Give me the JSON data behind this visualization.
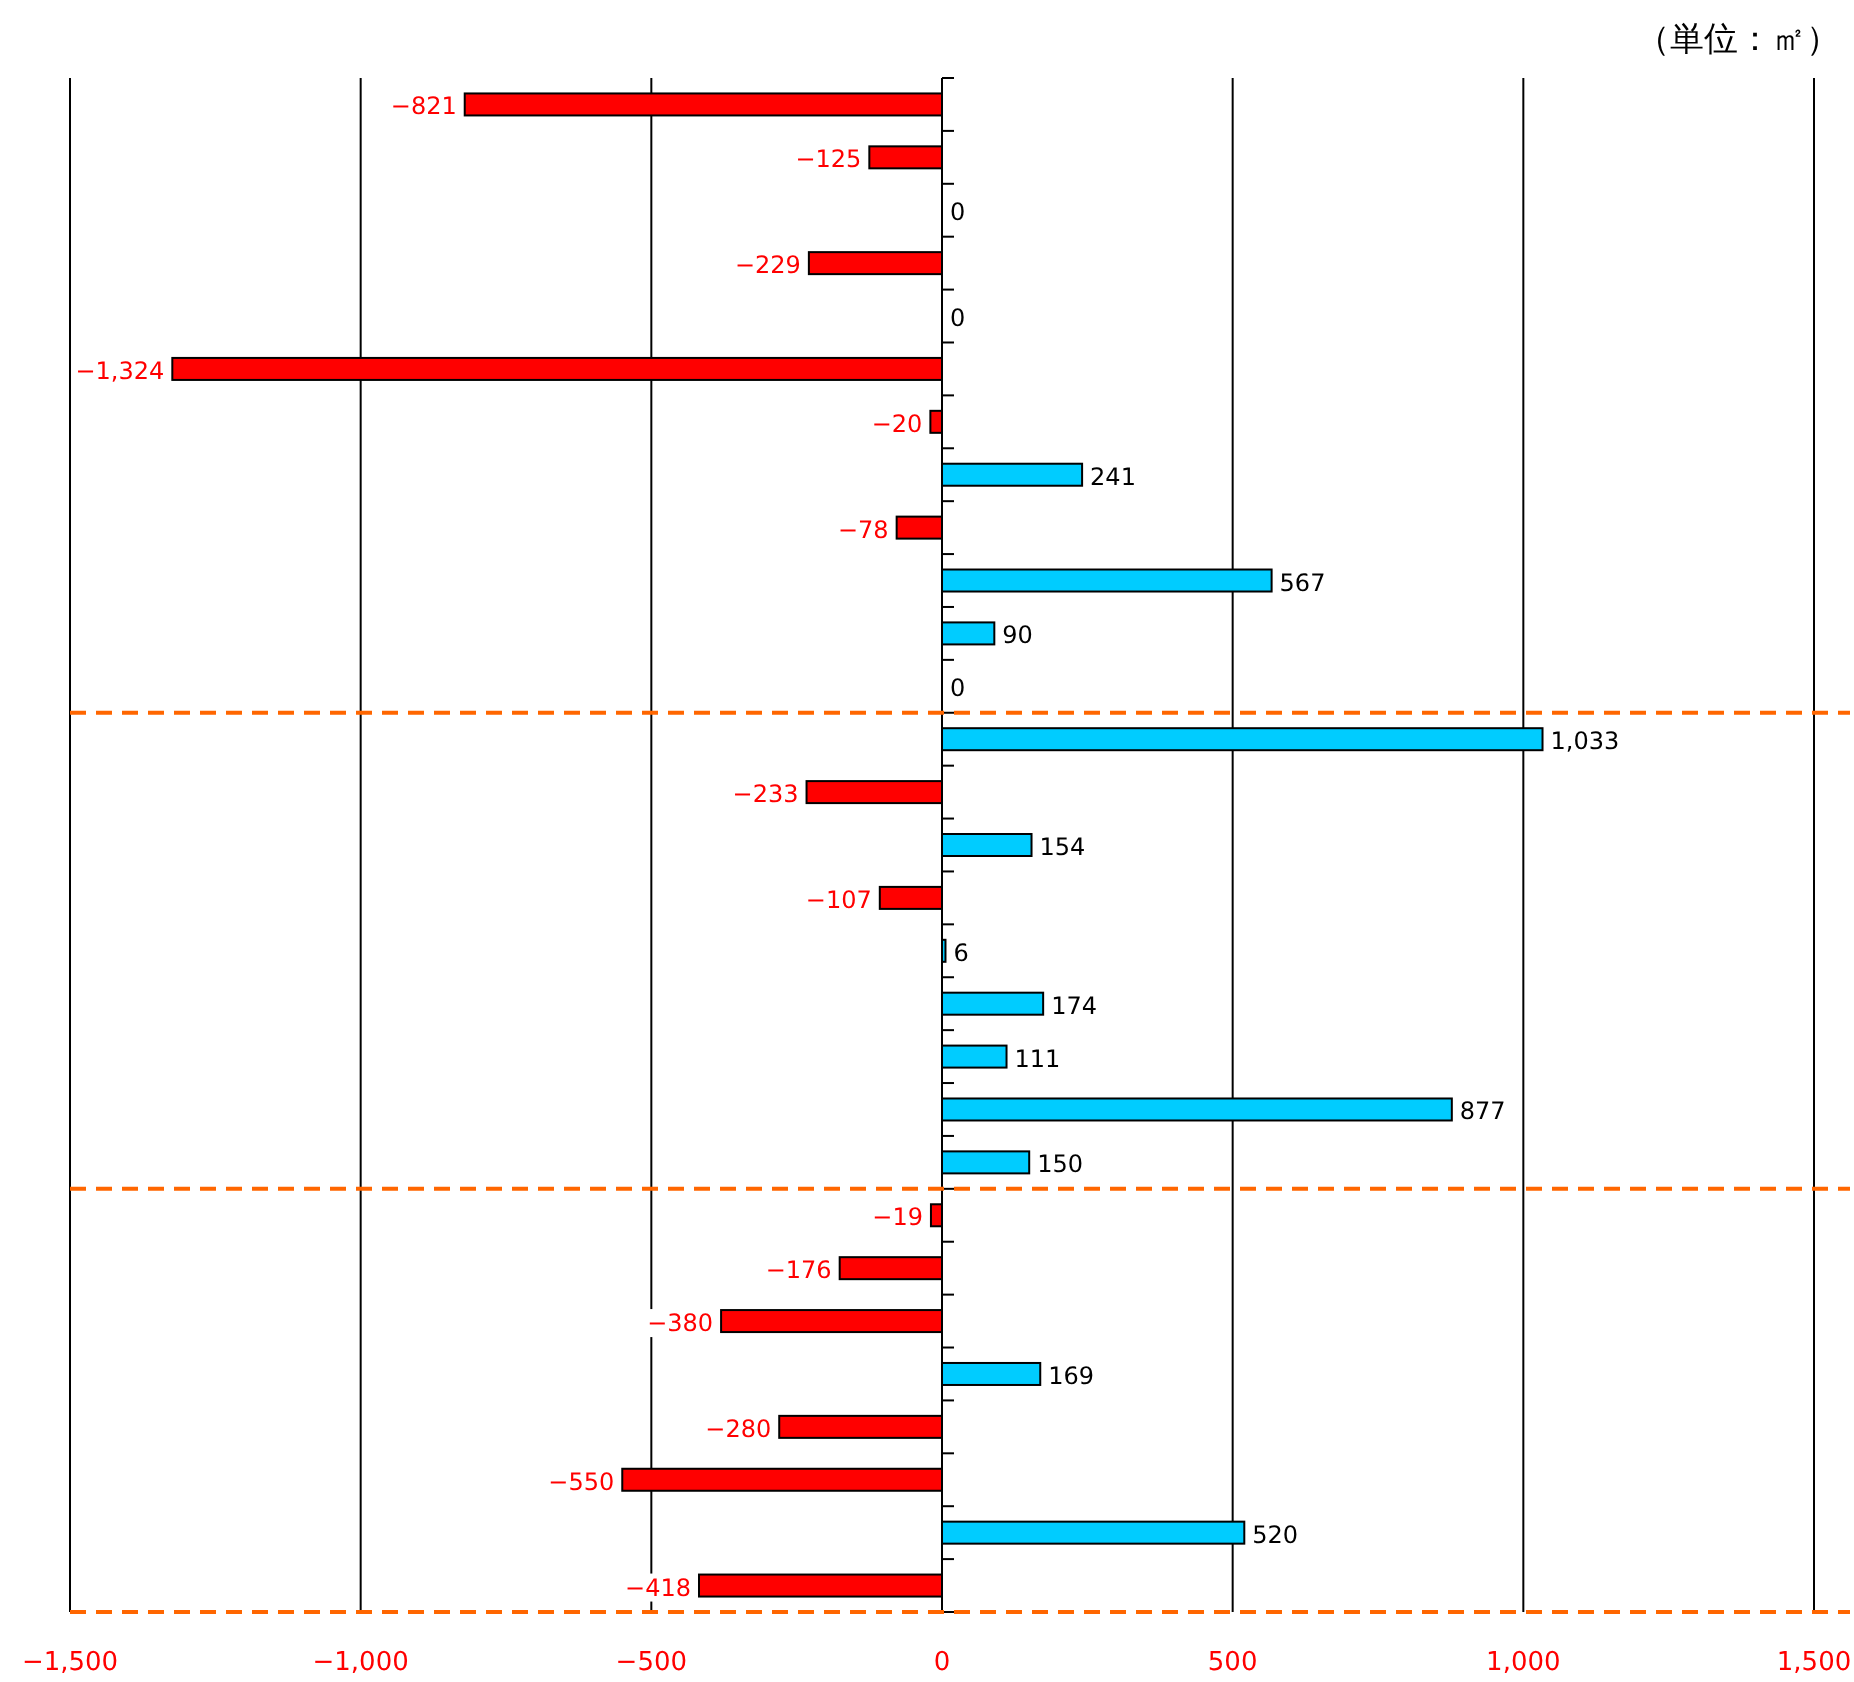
{
  "chart_data": {
    "type": "bar",
    "orientation": "horizontal",
    "title": "（単位：㎡）",
    "categories": [
      null,
      null,
      null,
      null,
      null,
      null,
      null,
      null,
      null,
      null,
      null,
      null,
      null,
      null,
      null,
      null,
      null,
      null,
      null,
      null,
      null,
      null,
      null,
      null,
      null,
      null,
      null,
      null,
      null
    ],
    "values": [
      -821,
      -125,
      0,
      -229,
      0,
      -1324,
      -20,
      241,
      -78,
      567,
      90,
      0,
      1033,
      -233,
      154,
      -107,
      6,
      174,
      111,
      877,
      150,
      -19,
      -176,
      -380,
      169,
      -280,
      -550,
      520,
      -418
    ],
    "colors": [
      "#ff0000",
      "#ff0000",
      "#ff0000",
      "#ff0000",
      "#ff0000",
      "#ff0000",
      "#ff0000",
      "#00ccff",
      "#ff0000",
      "#00ccff",
      "#00ccff",
      "#00ccff",
      "#00ccff",
      "#ff0000",
      "#00ccff",
      "#ff0000",
      "#00ccff",
      "#00ccff",
      "#00ccff",
      "#00ccff",
      "#00ccff",
      "#ff0000",
      "#ff0000",
      "#ff0000",
      "#00ccff",
      "#ff0000",
      "#ff0000",
      "#00ccff",
      "#ff0000"
    ],
    "value_labels": [
      "−821",
      "−125",
      "0",
      "−229",
      "0",
      "−1,324",
      "−20",
      "241",
      "−78",
      "567",
      "90",
      "0",
      "1,033",
      "−233",
      "154",
      "−107",
      "6",
      "174",
      "111",
      "877",
      "150",
      "−19",
      "−176",
      "−380",
      "169",
      "−280",
      "−550",
      "520",
      "−418"
    ],
    "xlim": [
      -1500,
      1500
    ],
    "xticks": [
      {
        "value": -1500,
        "label": "−1,500"
      },
      {
        "value": -1000,
        "label": "−1,000"
      },
      {
        "value": -500,
        "label": "−500"
      },
      0,
      500,
      {
        "value": 1000,
        "label": "1,000"
      },
      {
        "value": 1500,
        "label": "1,500"
      }
    ],
    "grid": "x"
  }
}
